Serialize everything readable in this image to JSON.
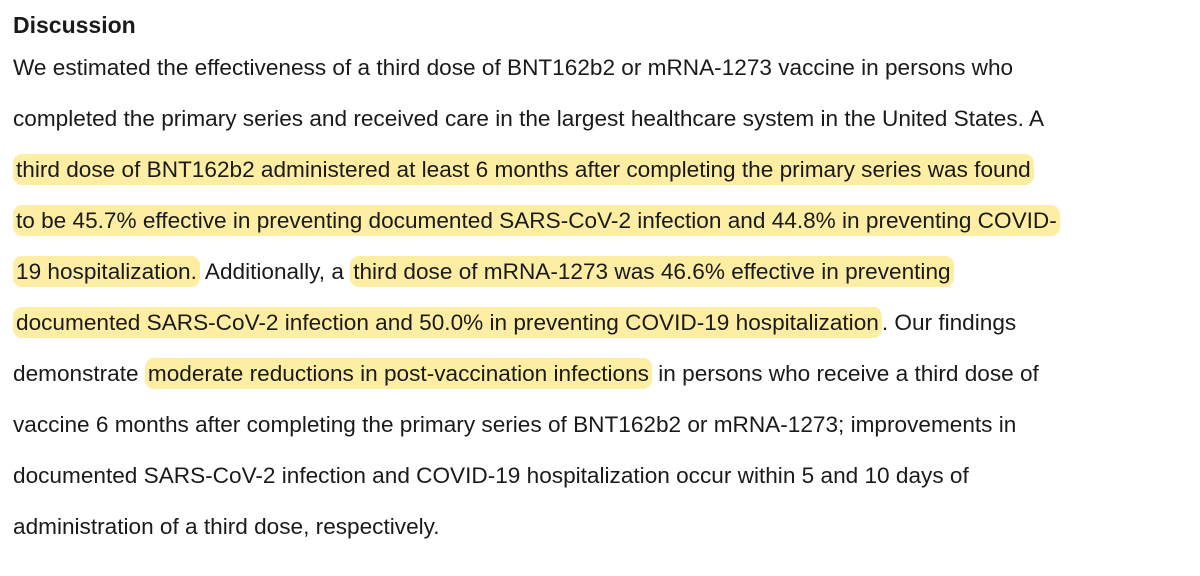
{
  "document": {
    "heading": "Discussion",
    "highlight_color": "#fdeea3",
    "lines": [
      [
        {
          "text": "We estimated the effectiveness of a third dose of BNT162b2 or mRNA-1273 vaccine in persons who",
          "highlight": false
        }
      ],
      [
        {
          "text": "completed the primary series and received care in the largest healthcare system in the United States. A",
          "highlight": false
        }
      ],
      [
        {
          "text": "third dose of BNT162b2 administered at least 6 months after completing the primary series was found",
          "highlight": true
        }
      ],
      [
        {
          "text": "to be 45.7% effective in preventing documented SARS-CoV-2 infection and 44.8% in preventing COVID-",
          "highlight": true
        }
      ],
      [
        {
          "text": "19 hospitalization.",
          "highlight": true
        },
        {
          "text": " Additionally, a ",
          "highlight": false
        },
        {
          "text": "third dose of mRNA-1273 was 46.6% effective in preventing",
          "highlight": true
        }
      ],
      [
        {
          "text": "documented SARS-CoV-2 infection and 50.0% in preventing COVID-19 hospitalization",
          "highlight": true
        },
        {
          "text": ". Our findings",
          "highlight": false
        }
      ],
      [
        {
          "text": "demonstrate ",
          "highlight": false
        },
        {
          "text": "moderate reductions in post-vaccination infections",
          "highlight": true
        },
        {
          "text": " in persons who receive a third dose of",
          "highlight": false
        }
      ],
      [
        {
          "text": "vaccine 6 months after completing the primary series of BNT162b2 or mRNA-1273; improvements in",
          "highlight": false
        }
      ],
      [
        {
          "text": "documented SARS-CoV-2 infection and COVID-19 hospitalization occur within 5 and 10 days of",
          "highlight": false
        }
      ],
      [
        {
          "text": "administration of a third dose, respectively.",
          "highlight": false
        }
      ]
    ]
  }
}
